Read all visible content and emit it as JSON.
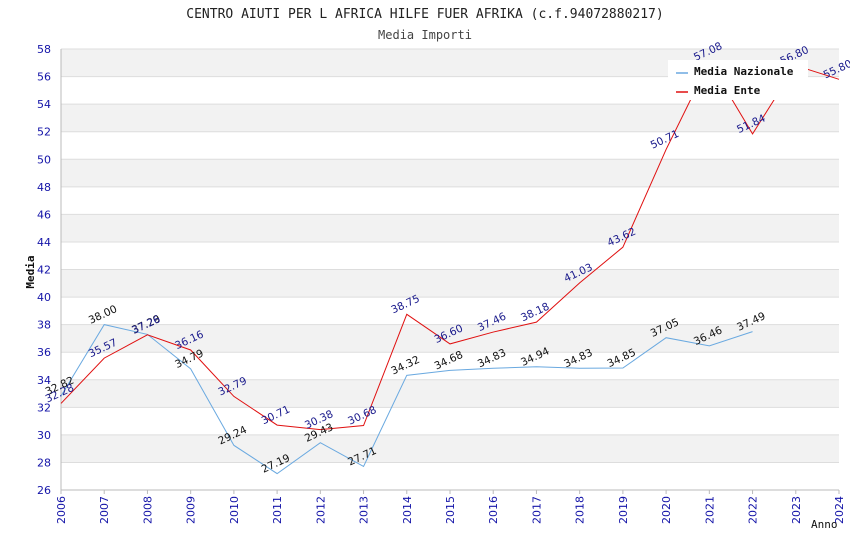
{
  "chart_data": {
    "type": "line",
    "title": "CENTRO AIUTI PER L AFRICA HILFE FUER AFRIKA (c.f.94072880217)",
    "subtitle": "Media Importi",
    "ylabel": "Media",
    "xlabel": "Anno",
    "ylim": [
      26,
      58
    ],
    "yticks": [
      26,
      28,
      30,
      32,
      34,
      36,
      38,
      40,
      42,
      44,
      46,
      48,
      50,
      52,
      54,
      56,
      58
    ],
    "x": [
      2006,
      2007,
      2008,
      2009,
      2010,
      2011,
      2012,
      2013,
      2014,
      2015,
      2016,
      2017,
      2018,
      2019,
      2020,
      2021,
      2022,
      2023,
      2024
    ],
    "grid": "horizontal bands",
    "legend_position": "top-right",
    "series": [
      {
        "name": "Media Nazionale",
        "color": "#6aa9e0",
        "label_color": "#111111",
        "x": [
          2006,
          2007,
          2008,
          2009,
          2010,
          2011,
          2012,
          2013,
          2014,
          2015,
          2016,
          2017,
          2018,
          2019,
          2020,
          2021,
          2022
        ],
        "values": [
          32.82,
          38.0,
          37.29,
          34.79,
          29.24,
          27.19,
          29.43,
          27.71,
          34.32,
          34.68,
          34.83,
          34.94,
          34.83,
          34.85,
          37.05,
          36.46,
          37.49
        ],
        "labels": [
          "32.82",
          "38.00",
          "37.29",
          "34.79",
          "29.24",
          "27.19",
          "29.43",
          "27.71",
          "34.32",
          "34.68",
          "34.83",
          "34.94",
          "34.83",
          "34.85",
          "37.05",
          "36.46",
          "37.49"
        ]
      },
      {
        "name": "Media Ente",
        "color": "#e01010",
        "label_color": "#1a1a8c",
        "x": [
          2006,
          2007,
          2008,
          2009,
          2010,
          2011,
          2012,
          2013,
          2014,
          2015,
          2016,
          2017,
          2018,
          2019,
          2020,
          2021,
          2022,
          2023,
          2024
        ],
        "values": [
          32.28,
          35.57,
          37.26,
          36.16,
          32.79,
          30.71,
          30.38,
          30.68,
          38.75,
          36.6,
          37.46,
          38.18,
          41.03,
          43.62,
          50.71,
          57.08,
          51.84,
          56.8,
          55.8
        ],
        "labels": [
          "32.28",
          "35.57",
          "37.26",
          "36.16",
          "32.79",
          "30.71",
          "30.38",
          "30.68",
          "38.75",
          "36.60",
          "37.46",
          "38.18",
          "41.03",
          "43.62",
          "50.71",
          "57.08",
          "51.84",
          "56.80",
          "55.80"
        ]
      }
    ]
  }
}
